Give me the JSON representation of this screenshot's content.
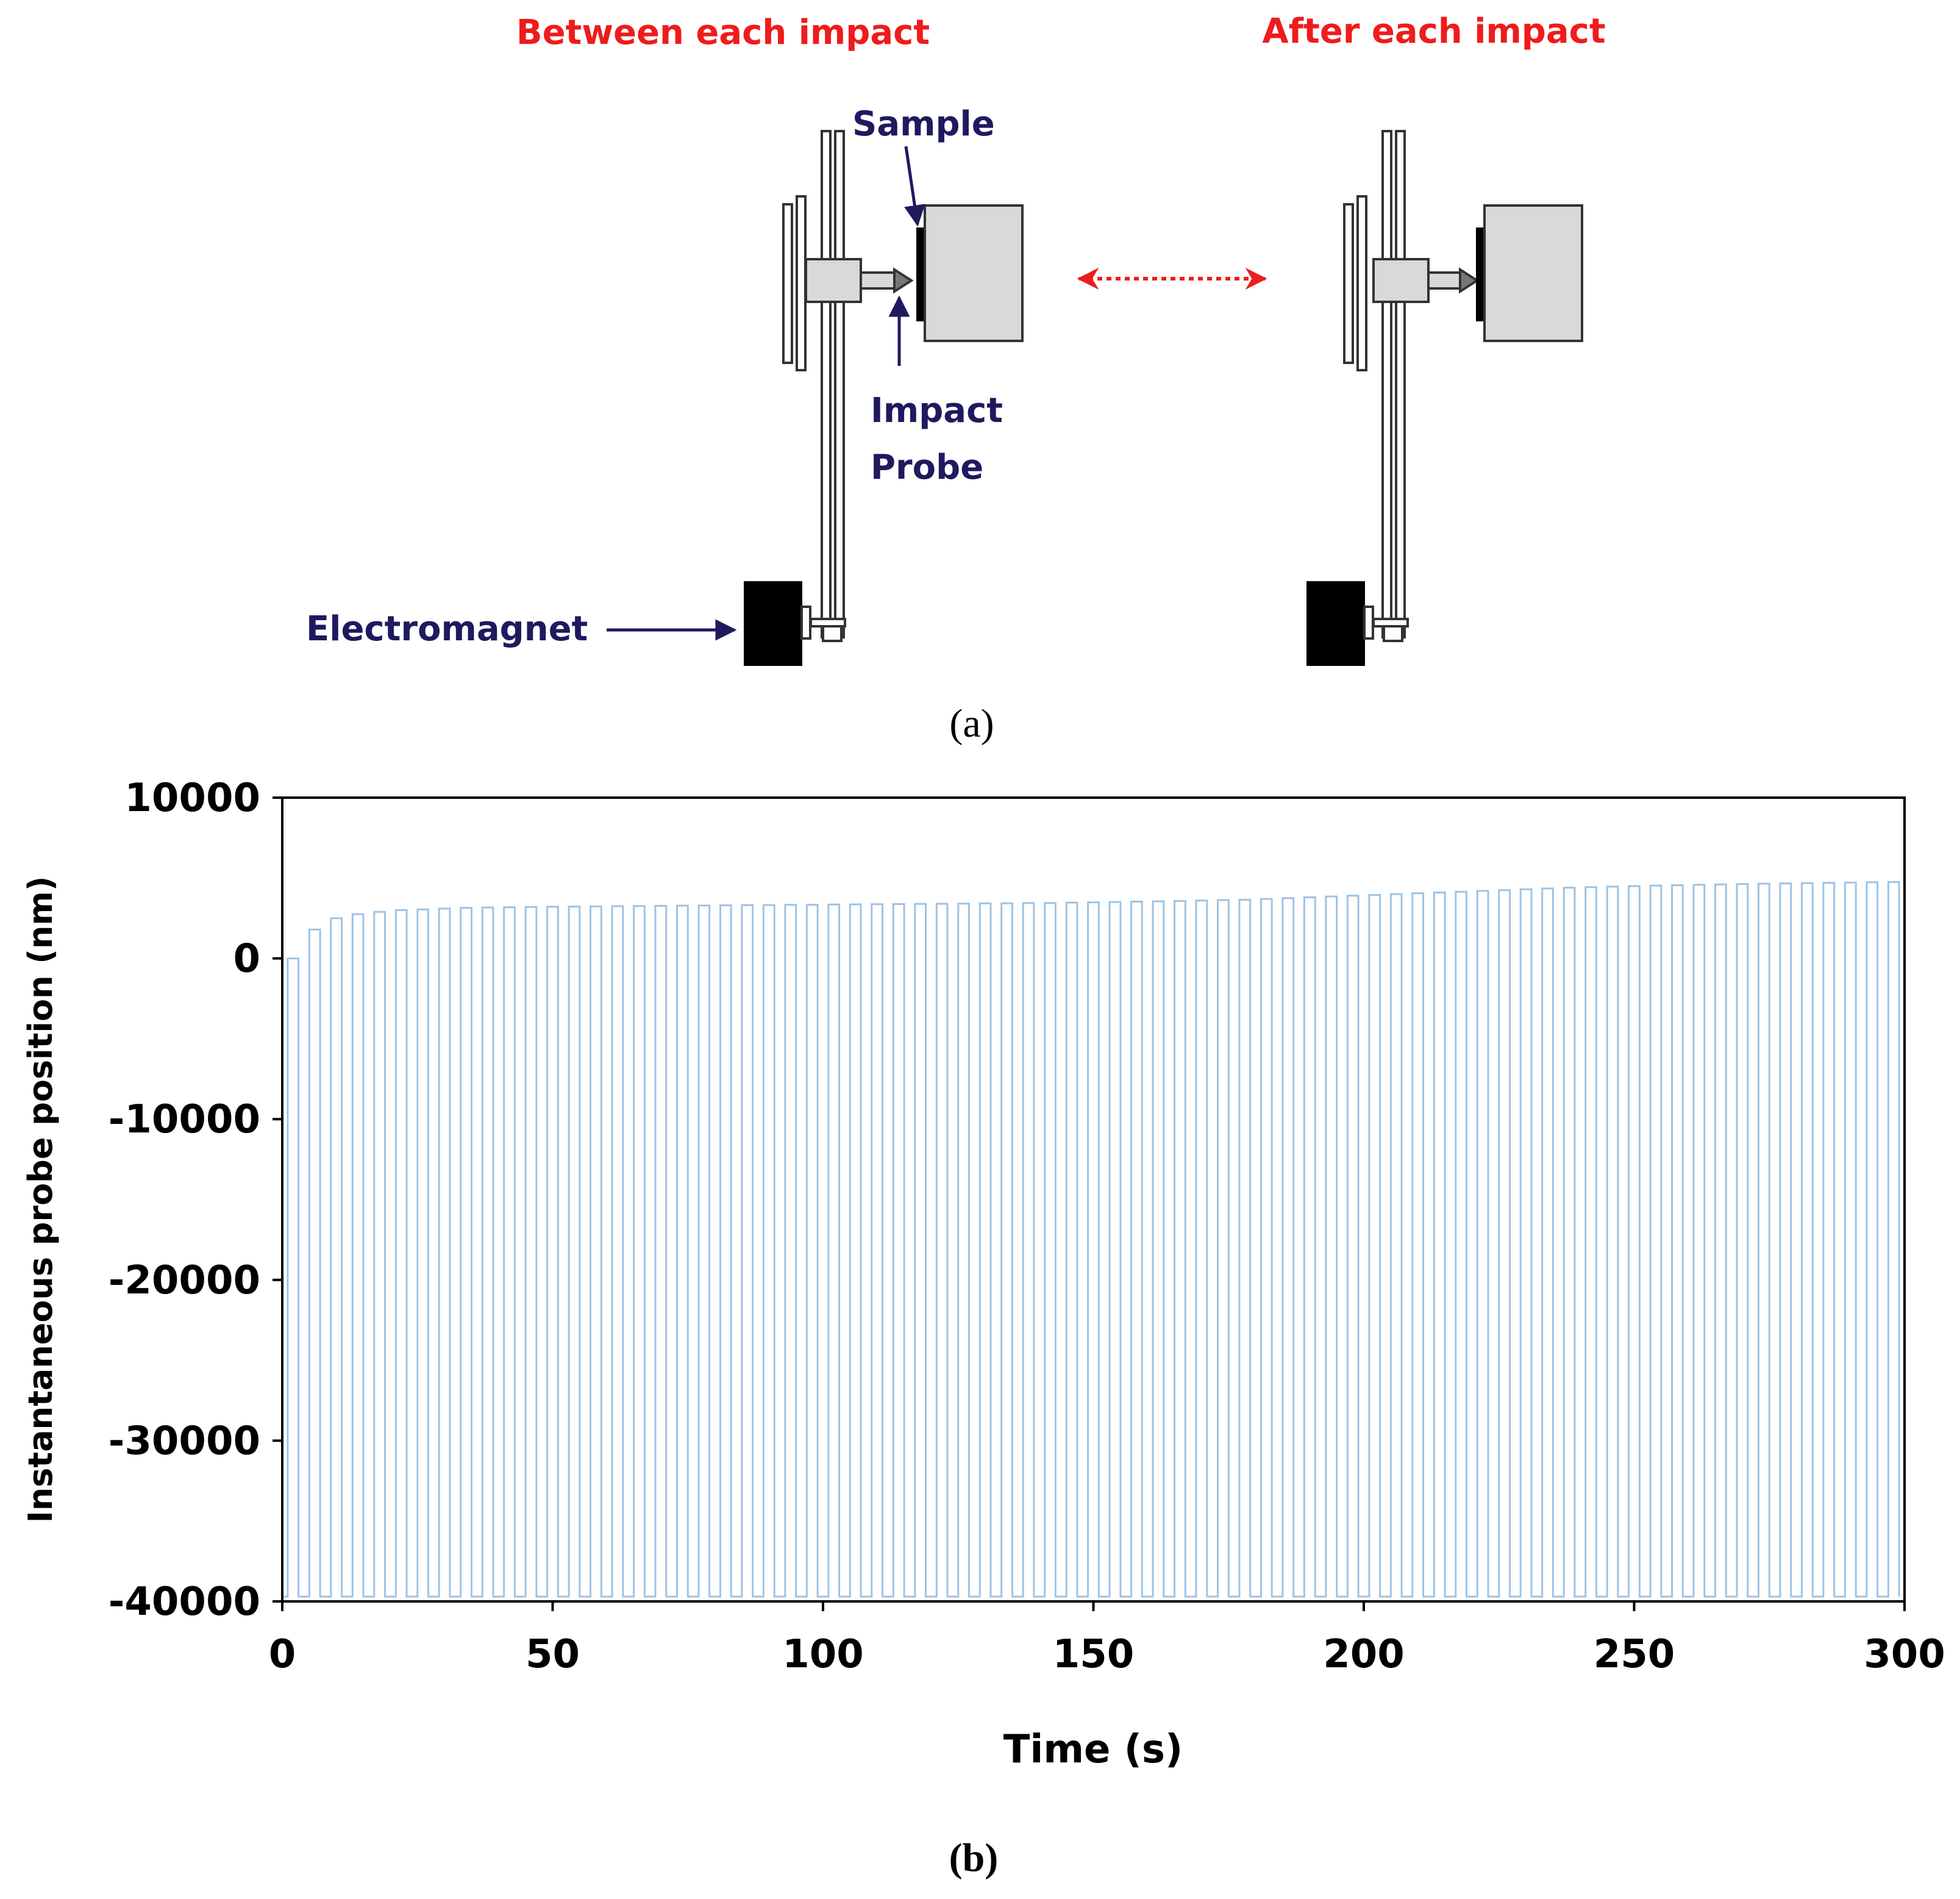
{
  "diagram": {
    "left_title": "Between each impact",
    "right_title": "After each impact",
    "sample_label": "Sample",
    "probe_label_line1": "Impact",
    "probe_label_line2": "Probe",
    "electromagnet_label": "Electromagnet",
    "panel_a_open": "(",
    "panel_a_letter": "a",
    "panel_a_close": ")",
    "colors": {
      "title_red": "#ee1c1c",
      "label_navy": "#1f1a5e",
      "part_grey": "#d9d9d9",
      "magnet": "#000000"
    }
  },
  "chart_data": {
    "type": "line",
    "title": "",
    "xlabel": "Time (s)",
    "ylabel": "Instantaneous probe position (nm)",
    "xlim": [
      0,
      300
    ],
    "ylim": [
      -40000,
      10000
    ],
    "xticks": [
      0,
      50,
      100,
      150,
      200,
      250,
      300
    ],
    "yticks": [
      10000,
      0,
      -10000,
      -20000,
      -30000,
      -40000
    ],
    "xtick_labels": [
      "0",
      "50",
      "100",
      "150",
      "200",
      "250",
      "300"
    ],
    "ytick_labels": [
      "10000",
      "0",
      "-10000",
      "-20000",
      "-30000",
      "-40000"
    ],
    "grid": false,
    "series": [
      {
        "name": "probe position",
        "color": "#9dc3e6",
        "impact_period_s": 4,
        "n_impacts": 75,
        "low_value_nm": -39700,
        "envelope_t": [
          1,
          5,
          9,
          13,
          17,
          21,
          25,
          33,
          45,
          61,
          81,
          101,
          121,
          141,
          161,
          177,
          189,
          201,
          213,
          225,
          237,
          249,
          261,
          273,
          285,
          297
        ],
        "envelope_y": [
          0,
          1800,
          2500,
          2750,
          2900,
          3000,
          3050,
          3150,
          3200,
          3250,
          3300,
          3350,
          3400,
          3450,
          3550,
          3650,
          3800,
          3950,
          4100,
          4250,
          4400,
          4500,
          4580,
          4650,
          4700,
          4750
        ]
      }
    ]
  },
  "panel_b": {
    "open": "(",
    "letter": "b",
    "close": ")"
  }
}
